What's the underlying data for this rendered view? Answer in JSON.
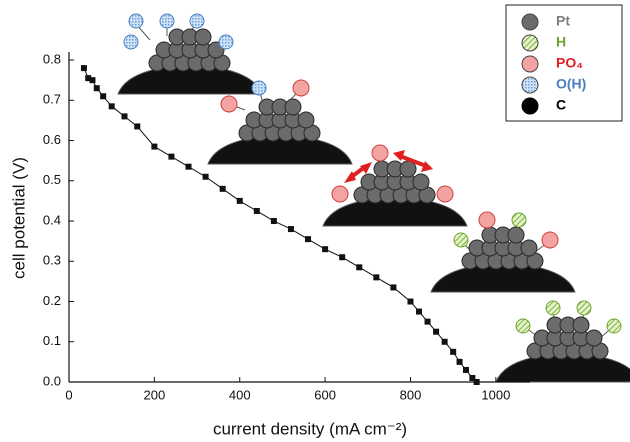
{
  "chart_data": {
    "type": "line",
    "x_label": "current density (mA cm⁻²)",
    "y_label": "cell potential (V)",
    "x": [
      35,
      45,
      55,
      65,
      80,
      100,
      130,
      160,
      200,
      240,
      280,
      320,
      360,
      400,
      440,
      480,
      520,
      560,
      600,
      640,
      680,
      720,
      760,
      800,
      820,
      840,
      860,
      880,
      900,
      915,
      930,
      945,
      955
    ],
    "values": [
      0.78,
      0.755,
      0.75,
      0.73,
      0.71,
      0.685,
      0.66,
      0.635,
      0.585,
      0.56,
      0.535,
      0.51,
      0.48,
      0.45,
      0.425,
      0.4,
      0.38,
      0.355,
      0.33,
      0.31,
      0.285,
      0.26,
      0.235,
      0.2,
      0.175,
      0.15,
      0.125,
      0.1,
      0.075,
      0.05,
      0.03,
      0.01,
      0.0
    ],
    "color": "#111111",
    "xlim": [
      0,
      1080
    ],
    "ylim": [
      0,
      0.82
    ],
    "xticks": [
      0,
      200,
      400,
      600,
      800,
      1000
    ],
    "yticks": [
      {
        "value": 0,
        "label": "0.0"
      },
      0.1,
      0.2,
      0.3,
      0.4,
      0.5,
      0.6,
      0.7,
      0.8
    ],
    "legend": [
      {
        "label": "Pt",
        "color": "#6b6b6b",
        "text_color": "#808080"
      },
      {
        "label": "H",
        "color": "#8fc04f",
        "text_color": "#6aa62c"
      },
      {
        "label": "PO₄",
        "color": "#f4a3a3",
        "text_color": "#e02020"
      },
      {
        "label": "O(H)",
        "color": "#8fb8e8",
        "text_color": "#4a7fc0"
      },
      {
        "label": "C",
        "color": "#000000",
        "text_color": "#000000"
      }
    ]
  }
}
